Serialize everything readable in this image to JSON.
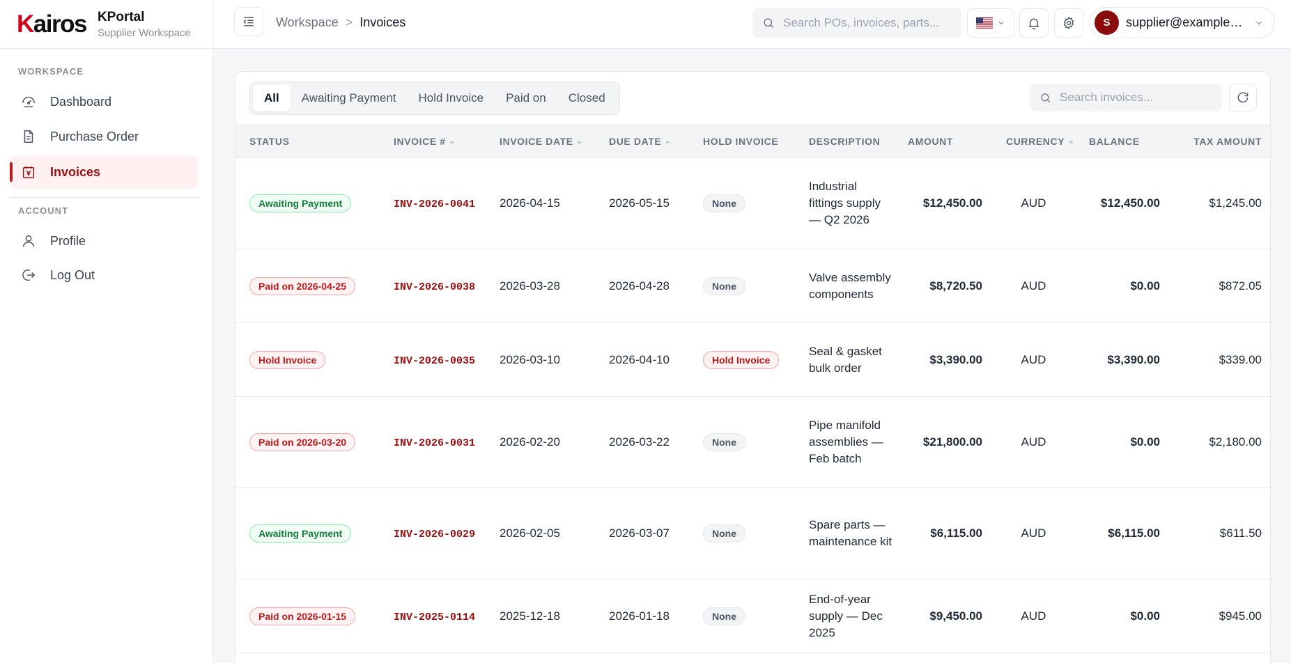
{
  "brand": {
    "logo": "Kairos",
    "title": "KPortal",
    "subtitle": "Supplier Workspace"
  },
  "sidebar": {
    "sections": [
      {
        "label": "WORKSPACE"
      },
      {
        "label": "ACCOUNT"
      }
    ],
    "items": [
      {
        "label": "Dashboard",
        "icon": "gauge-icon"
      },
      {
        "label": "Purchase Order",
        "icon": "document-icon"
      },
      {
        "label": "Invoices",
        "icon": "invoice-icon",
        "active": true
      },
      {
        "label": "Profile",
        "icon": "user-icon"
      },
      {
        "label": "Log Out",
        "icon": "logout-icon"
      }
    ]
  },
  "header": {
    "breadcrumb": {
      "root": "Workspace",
      "separator": ">",
      "current": "Invoices"
    },
    "search_placeholder": "Search POs, invoices, parts...",
    "language": "en-US",
    "user": {
      "initial": "S",
      "email": "supplier@example.com"
    }
  },
  "invoices": {
    "tabs": [
      "All",
      "Awaiting Payment",
      "Hold Invoice",
      "Paid on",
      "Closed"
    ],
    "active_tab": "All",
    "search_placeholder": "Search invoices...",
    "columns": [
      "STATUS",
      "INVOICE #",
      "INVOICE DATE",
      "DUE DATE",
      "HOLD INVOICE",
      "DESCRIPTION",
      "AMOUNT",
      "CURRENCY",
      "BALANCE",
      "TAX AMOUNT"
    ],
    "sort_symbol": "÷",
    "rows": [
      {
        "status": "Awaiting Payment",
        "status_type": "awaiting",
        "invoice_no": "INV-2026-0041",
        "invoice_date": "2026-04-15",
        "due_date": "2026-05-15",
        "hold": "None",
        "hold_type": "none",
        "description": "Industrial fittings supply — Q2 2026",
        "amount": "$12,450.00",
        "currency": "AUD",
        "balance": "$12,450.00",
        "tax": "$1,245.00"
      },
      {
        "status": "Paid on 2026-04-25",
        "status_type": "paid",
        "invoice_no": "INV-2026-0038",
        "invoice_date": "2026-03-28",
        "due_date": "2026-04-28",
        "hold": "None",
        "hold_type": "none",
        "description": "Valve assembly components",
        "amount": "$8,720.50",
        "currency": "AUD",
        "balance": "$0.00",
        "tax": "$872.05"
      },
      {
        "status": "Hold Invoice",
        "status_type": "hold",
        "invoice_no": "INV-2026-0035",
        "invoice_date": "2026-03-10",
        "due_date": "2026-04-10",
        "hold": "Hold Invoice",
        "hold_type": "hold",
        "description": "Seal & gasket bulk order",
        "amount": "$3,390.00",
        "currency": "AUD",
        "balance": "$3,390.00",
        "tax": "$339.00"
      },
      {
        "status": "Paid on 2026-03-20",
        "status_type": "paid",
        "invoice_no": "INV-2026-0031",
        "invoice_date": "2026-02-20",
        "due_date": "2026-03-22",
        "hold": "None",
        "hold_type": "none",
        "description": "Pipe manifold assemblies — Feb batch",
        "amount": "$21,800.00",
        "currency": "AUD",
        "balance": "$0.00",
        "tax": "$2,180.00"
      },
      {
        "status": "Awaiting Payment",
        "status_type": "awaiting",
        "invoice_no": "INV-2026-0029",
        "invoice_date": "2026-02-05",
        "due_date": "2026-03-07",
        "hold": "None",
        "hold_type": "none",
        "description": "Spare parts — maintenance kit",
        "amount": "$6,115.00",
        "currency": "AUD",
        "balance": "$6,115.00",
        "tax": "$611.50"
      },
      {
        "status": "Paid on 2026-01-15",
        "status_type": "paid",
        "invoice_no": "INV-2025-0114",
        "invoice_date": "2025-12-18",
        "due_date": "2026-01-18",
        "hold": "None",
        "hold_type": "none",
        "description": "End-of-year supply — Dec 2025",
        "amount": "$9,450.00",
        "currency": "AUD",
        "balance": "$0.00",
        "tax": "$945.00"
      }
    ]
  },
  "colors": {
    "brand_red": "#d0021b",
    "accent": "#9b0f0f",
    "awaiting": "#15803d",
    "paid": "#b91c1c"
  }
}
